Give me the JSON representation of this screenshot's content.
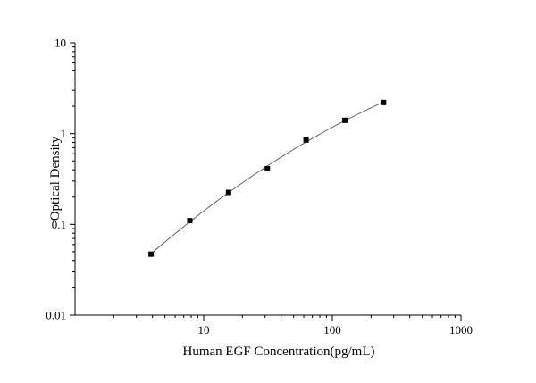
{
  "chart_data": {
    "type": "scatter",
    "title": "",
    "xlabel": "Human EGF Concentration(pg/mL)",
    "ylabel": "Optical Density",
    "x_scale": "log",
    "y_scale": "log",
    "xlim": [
      1,
      1000
    ],
    "ylim": [
      0.01,
      10
    ],
    "x_ticks": [
      {
        "value": 10,
        "label": "10"
      },
      {
        "value": 100,
        "label": "100"
      },
      {
        "value": 1000,
        "label": "1000"
      }
    ],
    "y_ticks": [
      {
        "value": 0.01,
        "label": "0.01"
      },
      {
        "value": 0.1,
        "label": "0.1"
      },
      {
        "value": 1,
        "label": "1"
      },
      {
        "value": 10,
        "label": "10"
      }
    ],
    "grid": false,
    "legend": "none",
    "series": [
      {
        "x": [
          3.9,
          7.8,
          15.6,
          31.25,
          62.5,
          125,
          250
        ],
        "y": [
          0.047,
          0.11,
          0.225,
          0.41,
          0.85,
          1.4,
          2.2
        ],
        "marker": "square",
        "color": "#000000",
        "fit_line": true
      }
    ]
  }
}
